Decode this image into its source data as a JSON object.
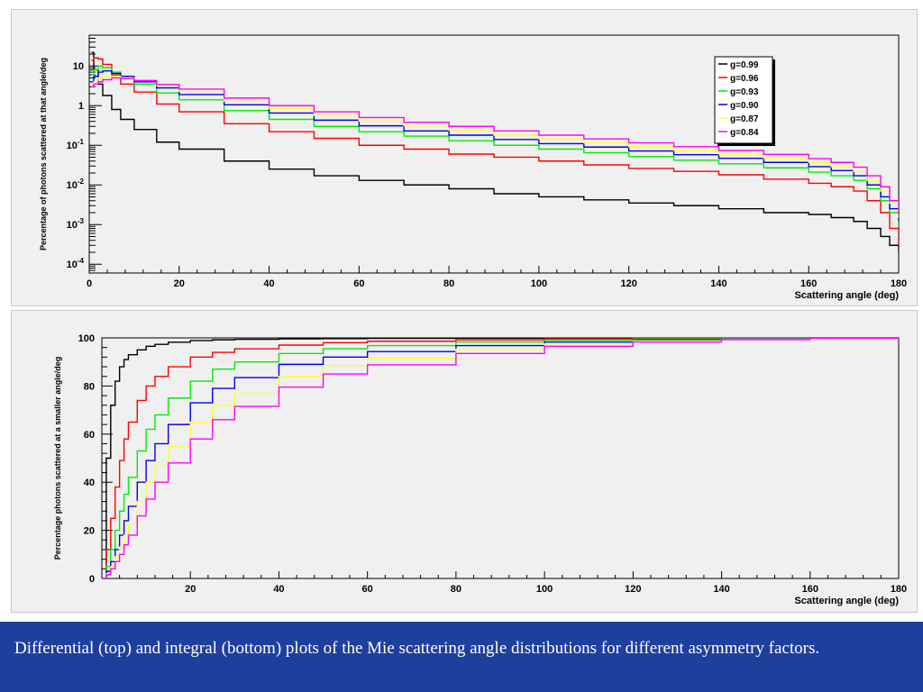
{
  "caption": "Differential (top) and integral (bottom) plots of the Mie scattering angle distributions for different asymmetry factors.",
  "colors": {
    "g099": "#000000",
    "g096": "#ff0000",
    "g093": "#00ee00",
    "g090": "#0000ee",
    "g087": "#ffff33",
    "g084": "#ff00ff"
  },
  "chart_data": [
    {
      "type": "line",
      "title": "",
      "xlabel": "Scattering angle (deg)",
      "ylabel": "Percentage of photons scattered at that angle/deg",
      "xlim": [
        0,
        180
      ],
      "ylim": [
        6e-05,
        60
      ],
      "yscale": "log",
      "xticks": [
        "0",
        "20",
        "40",
        "60",
        "80",
        "100",
        "120",
        "140",
        "160",
        "180"
      ],
      "yticks": [
        {
          "v": 10,
          "base": "10",
          "exp": ""
        },
        {
          "v": 1,
          "base": "1",
          "exp": ""
        },
        {
          "v": 0.1,
          "base": "10",
          "exp": "-1"
        },
        {
          "v": 0.01,
          "base": "10",
          "exp": "-2"
        },
        {
          "v": 0.001,
          "base": "10",
          "exp": "-3"
        },
        {
          "v": 0.0001,
          "base": "10",
          "exp": "-4"
        }
      ],
      "legend_position": "top-right",
      "grid": false,
      "x": [
        0.5,
        1,
        2,
        3,
        5,
        7,
        10,
        15,
        20,
        30,
        40,
        50,
        60,
        70,
        80,
        90,
        100,
        110,
        120,
        130,
        140,
        150,
        160,
        165,
        170,
        173,
        176,
        178,
        180
      ],
      "series": [
        {
          "name": "g=0.99",
          "color": "#000000",
          "values": [
            22,
            8,
            3.5,
            1.8,
            0.8,
            0.45,
            0.25,
            0.12,
            0.08,
            0.04,
            0.025,
            0.017,
            0.013,
            0.01,
            0.008,
            0.006,
            0.005,
            0.0042,
            0.0035,
            0.003,
            0.0025,
            0.002,
            0.0018,
            0.0015,
            0.0012,
            0.0008,
            0.0005,
            0.0003,
            0.0002
          ]
        },
        {
          "name": "g=0.96",
          "color": "#ff0000",
          "values": [
            14,
            16,
            15,
            11,
            6,
            3.5,
            2.2,
            1.1,
            0.7,
            0.35,
            0.22,
            0.15,
            0.1,
            0.08,
            0.06,
            0.05,
            0.04,
            0.032,
            0.026,
            0.022,
            0.018,
            0.014,
            0.011,
            0.009,
            0.007,
            0.004,
            0.002,
            0.0008,
            0.0003
          ]
        },
        {
          "name": "g=0.93",
          "color": "#00ee00",
          "values": [
            6,
            8,
            10,
            9,
            7,
            5,
            3.5,
            2.1,
            1.4,
            0.75,
            0.45,
            0.3,
            0.22,
            0.17,
            0.13,
            0.1,
            0.08,
            0.065,
            0.052,
            0.042,
            0.034,
            0.027,
            0.021,
            0.017,
            0.013,
            0.008,
            0.004,
            0.002,
            0.0009
          ]
        },
        {
          "name": "g=0.90",
          "color": "#0000ee",
          "values": [
            4,
            5.5,
            7,
            7.5,
            6.5,
            5.5,
            4,
            2.8,
            1.9,
            1.05,
            0.65,
            0.43,
            0.31,
            0.23,
            0.18,
            0.14,
            0.11,
            0.09,
            0.072,
            0.058,
            0.047,
            0.037,
            0.029,
            0.023,
            0.017,
            0.01,
            0.005,
            0.0025,
            0.0012
          ]
        },
        {
          "name": "g=0.87",
          "color": "#ffff33",
          "values": [
            3.5,
            4,
            5,
            5.5,
            5.5,
            5,
            4.3,
            3.2,
            2.3,
            1.3,
            0.85,
            0.57,
            0.41,
            0.31,
            0.24,
            0.18,
            0.145,
            0.115,
            0.092,
            0.074,
            0.06,
            0.047,
            0.037,
            0.029,
            0.022,
            0.013,
            0.007,
            0.0035,
            0.0015
          ]
        },
        {
          "name": "g=0.84",
          "color": "#ff00ff",
          "values": [
            3,
            3.5,
            4,
            4.5,
            5,
            4.8,
            4.3,
            3.4,
            2.6,
            1.55,
            1,
            0.7,
            0.5,
            0.38,
            0.3,
            0.23,
            0.18,
            0.145,
            0.115,
            0.092,
            0.074,
            0.059,
            0.046,
            0.037,
            0.028,
            0.017,
            0.009,
            0.004,
            0.0018
          ]
        }
      ]
    },
    {
      "type": "line",
      "title": "",
      "xlabel": "Scattering angle (deg)",
      "ylabel": "Percentage photons scattered at a smaller angle/deg",
      "xlim": [
        0,
        180
      ],
      "ylim": [
        0,
        100
      ],
      "yscale": "linear",
      "xticks": [
        "20",
        "40",
        "60",
        "80",
        "100",
        "120",
        "140",
        "160",
        "180"
      ],
      "yticks": [
        "0",
        "20",
        "40",
        "60",
        "80",
        "100"
      ],
      "grid": false,
      "x": [
        0,
        1,
        2,
        3,
        4,
        5,
        6,
        8,
        10,
        12,
        15,
        20,
        25,
        30,
        40,
        50,
        60,
        80,
        100,
        120,
        140,
        160,
        180
      ],
      "series": [
        {
          "name": "g=0.99",
          "color": "#000000",
          "values": [
            0,
            50,
            72,
            82,
            88,
            91,
            93,
            95,
            96.5,
            97.3,
            98.2,
            98.9,
            99.2,
            99.4,
            99.6,
            99.7,
            99.8,
            99.9,
            99.95,
            99.98,
            99.99,
            100,
            100
          ]
        },
        {
          "name": "g=0.96",
          "color": "#ff0000",
          "values": [
            0,
            12,
            25,
            38,
            49,
            58,
            65,
            74,
            80,
            84,
            88,
            92,
            94,
            95.5,
            97,
            98,
            98.6,
            99.2,
            99.6,
            99.8,
            99.9,
            99.97,
            100
          ]
        },
        {
          "name": "g=0.93",
          "color": "#00ee00",
          "values": [
            0,
            5,
            12,
            20,
            28,
            35,
            42,
            53,
            62,
            68,
            75,
            82,
            87,
            90,
            93.5,
            95.5,
            96.8,
            98.3,
            99.1,
            99.6,
            99.85,
            99.95,
            100
          ]
        },
        {
          "name": "g=0.90",
          "color": "#0000ee",
          "values": [
            0,
            3,
            7,
            12,
            18,
            24,
            30,
            40,
            49,
            56,
            64,
            73,
            79,
            83.5,
            89,
            92,
            94.3,
            96.8,
            98.3,
            99.2,
            99.7,
            99.92,
            100
          ]
        },
        {
          "name": "g=0.87",
          "color": "#ffff33",
          "values": [
            0,
            2,
            5,
            9,
            13,
            18,
            23,
            32,
            40,
            47,
            55,
            65,
            72,
            77,
            84,
            88.5,
            91.5,
            95.3,
            97.5,
            98.8,
            99.5,
            99.88,
            100
          ]
        },
        {
          "name": "g=0.84",
          "color": "#ff00ff",
          "values": [
            0,
            1.5,
            4,
            7,
            10,
            14,
            18,
            26,
            33,
            40,
            48,
            58,
            66,
            71.5,
            79.5,
            85,
            88.8,
            93.5,
            96.5,
            98.3,
            99.3,
            99.82,
            100
          ]
        }
      ]
    }
  ]
}
